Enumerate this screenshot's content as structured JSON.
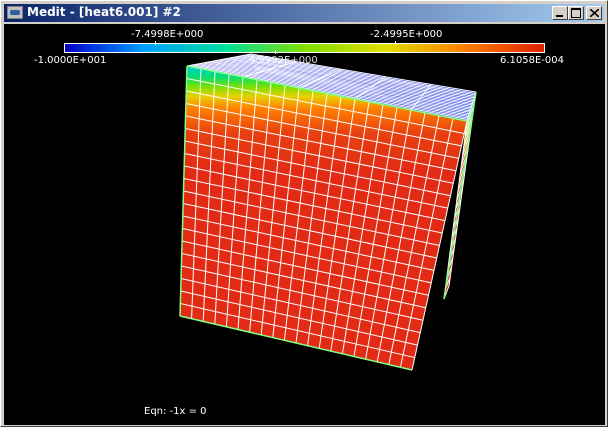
{
  "window": {
    "title": "Medit - [heat6.001] #2",
    "icons": {
      "app": "medit-app-icon",
      "minimize": "minimize-icon",
      "maximize": "maximize-icon",
      "close": "close-icon"
    }
  },
  "colorbar": {
    "min_label": "-1.0000E+001",
    "max_label": "6.1058E-004",
    "tick_labels": [
      "-7.4998E+000",
      "-2.4995E+000"
    ],
    "overlap_label": "4.9992E+000",
    "gradient": [
      "#0000c8",
      "#00a0ff",
      "#00e0a0",
      "#80e000",
      "#e0e000",
      "#ff8000",
      "#e02000"
    ]
  },
  "viewport": {
    "background": "#000000",
    "mesh_color": "#ffffff",
    "edge_color": "#80ff80",
    "face_color": "#e22a14"
  },
  "status": {
    "equation": "Eqn:  -1x = 0"
  }
}
